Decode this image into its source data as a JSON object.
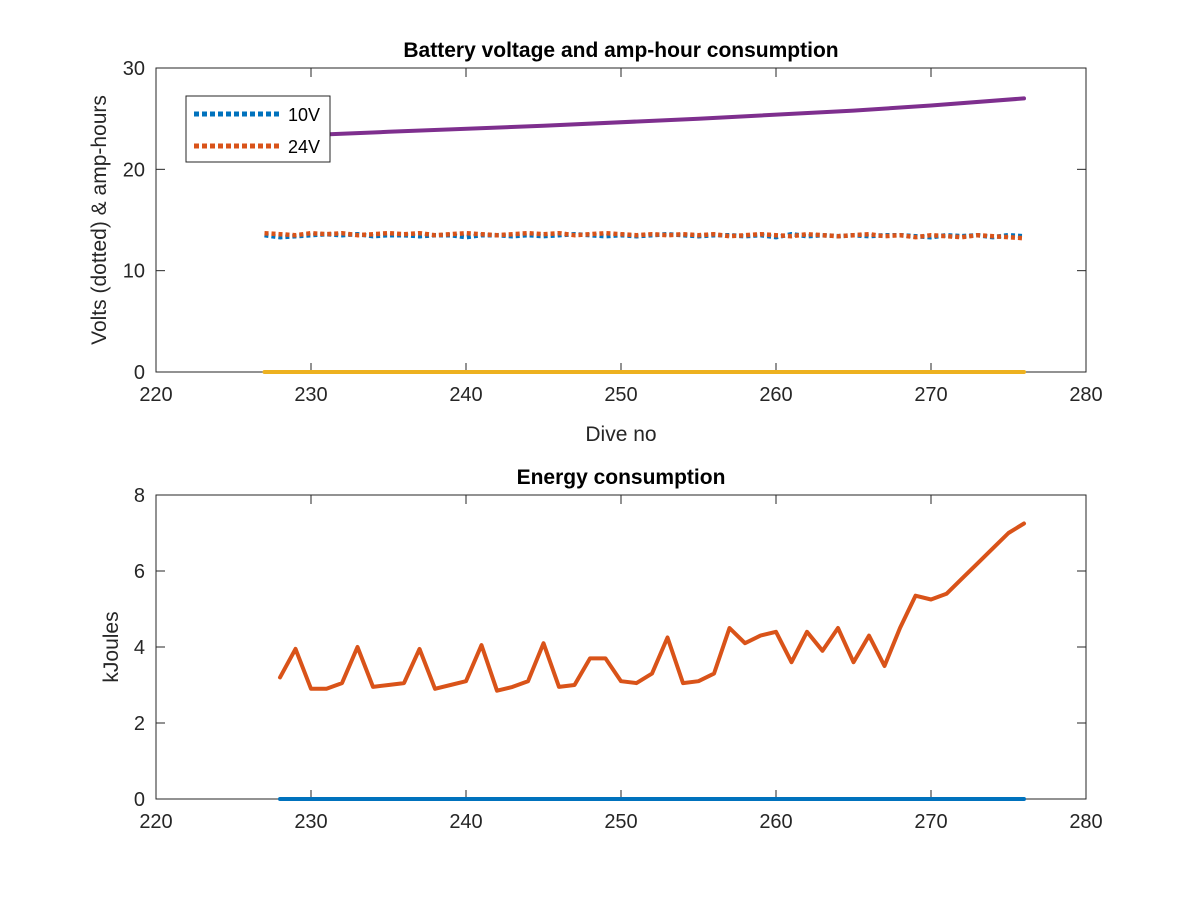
{
  "chart_data": [
    {
      "type": "line",
      "title": "Battery voltage and amp-hour consumption",
      "xlabel": "Dive no",
      "ylabel": "Volts (dotted) & amp-hours",
      "xlim": [
        220,
        280
      ],
      "ylim": [
        0,
        30
      ],
      "xticks": [
        "220",
        "230",
        "240",
        "250",
        "260",
        "270",
        "280"
      ],
      "yticks": [
        "0",
        "10",
        "20",
        "30"
      ],
      "grid": false,
      "legend_position": "top-left",
      "series": [
        {
          "name": "10V",
          "style": "dotted",
          "color": "#0072BD",
          "x": [
            227,
            228,
            229,
            230,
            231,
            232,
            233,
            234,
            235,
            236,
            237,
            238,
            239,
            240,
            241,
            242,
            243,
            244,
            245,
            246,
            247,
            248,
            249,
            250,
            251,
            252,
            253,
            254,
            255,
            256,
            257,
            258,
            259,
            260,
            261,
            262,
            263,
            264,
            265,
            266,
            267,
            268,
            269,
            270,
            271,
            272,
            273,
            274,
            275,
            276
          ],
          "values": [
            13.5,
            13.3,
            13.4,
            13.5,
            13.6,
            13.5,
            13.6,
            13.4,
            13.5,
            13.5,
            13.4,
            13.5,
            13.5,
            13.3,
            13.5,
            13.5,
            13.4,
            13.5,
            13.4,
            13.5,
            13.6,
            13.5,
            13.4,
            13.5,
            13.4,
            13.5,
            13.6,
            13.5,
            13.4,
            13.5,
            13.5,
            13.4,
            13.5,
            13.3,
            13.6,
            13.4,
            13.5,
            13.4,
            13.5,
            13.4,
            13.5,
            13.5,
            13.4,
            13.3,
            13.5,
            13.4,
            13.5,
            13.3,
            13.5,
            13.4
          ]
        },
        {
          "name": "24V",
          "style": "dotted",
          "color": "#D95319",
          "x": [
            227,
            228,
            229,
            230,
            231,
            232,
            233,
            234,
            235,
            236,
            237,
            238,
            239,
            240,
            241,
            242,
            243,
            244,
            245,
            246,
            247,
            248,
            249,
            250,
            251,
            252,
            253,
            254,
            255,
            256,
            257,
            258,
            259,
            260,
            261,
            262,
            263,
            264,
            265,
            266,
            267,
            268,
            269,
            270,
            271,
            272,
            273,
            274,
            275,
            276
          ],
          "values": [
            13.7,
            13.6,
            13.5,
            13.7,
            13.6,
            13.7,
            13.5,
            13.6,
            13.7,
            13.6,
            13.7,
            13.5,
            13.6,
            13.7,
            13.6,
            13.5,
            13.6,
            13.7,
            13.6,
            13.7,
            13.5,
            13.6,
            13.7,
            13.6,
            13.5,
            13.6,
            13.5,
            13.6,
            13.5,
            13.6,
            13.4,
            13.5,
            13.6,
            13.5,
            13.4,
            13.6,
            13.5,
            13.4,
            13.5,
            13.6,
            13.4,
            13.5,
            13.3,
            13.5,
            13.4,
            13.3,
            13.5,
            13.4,
            13.3,
            13.2
          ]
        },
        {
          "style": "solid",
          "color": "#7E2F8E",
          "x": [
            227,
            235,
            245,
            255,
            265,
            270,
            276
          ],
          "values": [
            23.2,
            23.7,
            24.3,
            25.0,
            25.8,
            26.3,
            27.0
          ]
        },
        {
          "style": "solid",
          "color": "#EDB120",
          "x": [
            227,
            276
          ],
          "values": [
            0,
            0
          ]
        }
      ]
    },
    {
      "type": "line",
      "title": "Energy consumption",
      "xlabel": "",
      "ylabel": "kJoules",
      "xlim": [
        220,
        280
      ],
      "ylim": [
        0,
        8
      ],
      "xticks": [
        "220",
        "230",
        "240",
        "250",
        "260",
        "270",
        "280"
      ],
      "yticks": [
        "0",
        "2",
        "4",
        "6",
        "8"
      ],
      "grid": false,
      "series": [
        {
          "style": "solid",
          "color": "#D95319",
          "x": [
            228,
            229,
            230,
            231,
            232,
            233,
            234,
            235,
            236,
            237,
            238,
            239,
            240,
            241,
            242,
            243,
            244,
            245,
            246,
            247,
            248,
            249,
            250,
            251,
            252,
            253,
            254,
            255,
            256,
            257,
            258,
            259,
            260,
            261,
            262,
            263,
            264,
            265,
            266,
            267,
            268,
            269,
            270,
            271,
            272,
            273,
            274,
            275,
            276
          ],
          "values": [
            3.2,
            3.95,
            2.9,
            2.9,
            3.05,
            4.0,
            2.95,
            3.0,
            3.05,
            3.95,
            2.9,
            3.0,
            3.1,
            4.05,
            2.85,
            2.95,
            3.1,
            4.1,
            2.95,
            3.0,
            3.7,
            3.7,
            3.1,
            3.05,
            3.3,
            4.25,
            3.05,
            3.1,
            3.3,
            4.5,
            4.1,
            4.3,
            4.4,
            3.6,
            4.4,
            3.9,
            4.5,
            3.6,
            4.3,
            3.5,
            4.5,
            5.35,
            5.25,
            5.4,
            5.8,
            6.2,
            6.6,
            7.0,
            7.25
          ]
        },
        {
          "style": "solid",
          "color": "#0072BD",
          "x": [
            228,
            276
          ],
          "values": [
            0,
            0
          ]
        }
      ]
    }
  ]
}
